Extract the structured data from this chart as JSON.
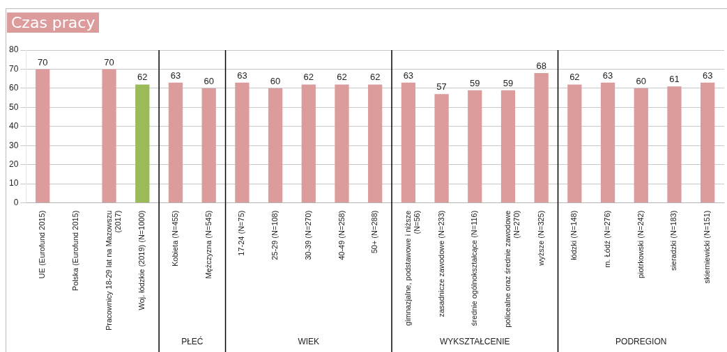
{
  "chart_data": {
    "type": "bar",
    "title": "Czas pracy",
    "categories": [
      "UE (Eurofund 2015)",
      "Polska (Eurofund 2015)",
      "Pracownicy 18-29 lat na Mazowszu (2017)",
      "Woj. łódzkie (2019) (N=1000)",
      "Kobieta (N=455)",
      "Mężczyzna (N=545)",
      "17-24 (N=75)",
      "25-29 (N=108)",
      "30-39 (N=270)",
      "40-49 (N=258)",
      "50+ (N=288)",
      "gimnazjalne, podstawowe i niższe (N=56)",
      "zasadnicze zawodowe (N=233)",
      "średnie ogólnokształcące (N=116)",
      "policealne oraz średnie zawodowe (N=270)",
      "wyższe (N=325)",
      "łódzki (N=148)",
      "m. Łódź (N=276)",
      "piotrkowski (N=242)",
      "sieradzki (N=183)",
      "skierniewicki (N=151)"
    ],
    "values": [
      70,
      null,
      70,
      62,
      63,
      60,
      63,
      60,
      62,
      62,
      62,
      63,
      57,
      59,
      59,
      68,
      62,
      63,
      60,
      61,
      63
    ],
    "colors": [
      "#dc9c9c",
      "#dc9c9c",
      "#dc9c9c",
      "#9bbb59",
      "#dc9c9c",
      "#dc9c9c",
      "#dc9c9c",
      "#dc9c9c",
      "#dc9c9c",
      "#dc9c9c",
      "#dc9c9c",
      "#dc9c9c",
      "#dc9c9c",
      "#dc9c9c",
      "#dc9c9c",
      "#dc9c9c",
      "#dc9c9c",
      "#dc9c9c",
      "#dc9c9c",
      "#dc9c9c",
      "#dc9c9c"
    ],
    "ylim": [
      0,
      80
    ],
    "yticks": [
      0,
      10,
      20,
      30,
      40,
      50,
      60,
      70,
      80
    ],
    "grid": "y",
    "data_labels": true,
    "legend": false,
    "annotations": [
      "PŁEĆ",
      "WIEK",
      "WYKSZTAŁCENIE",
      "PODREGION"
    ]
  }
}
